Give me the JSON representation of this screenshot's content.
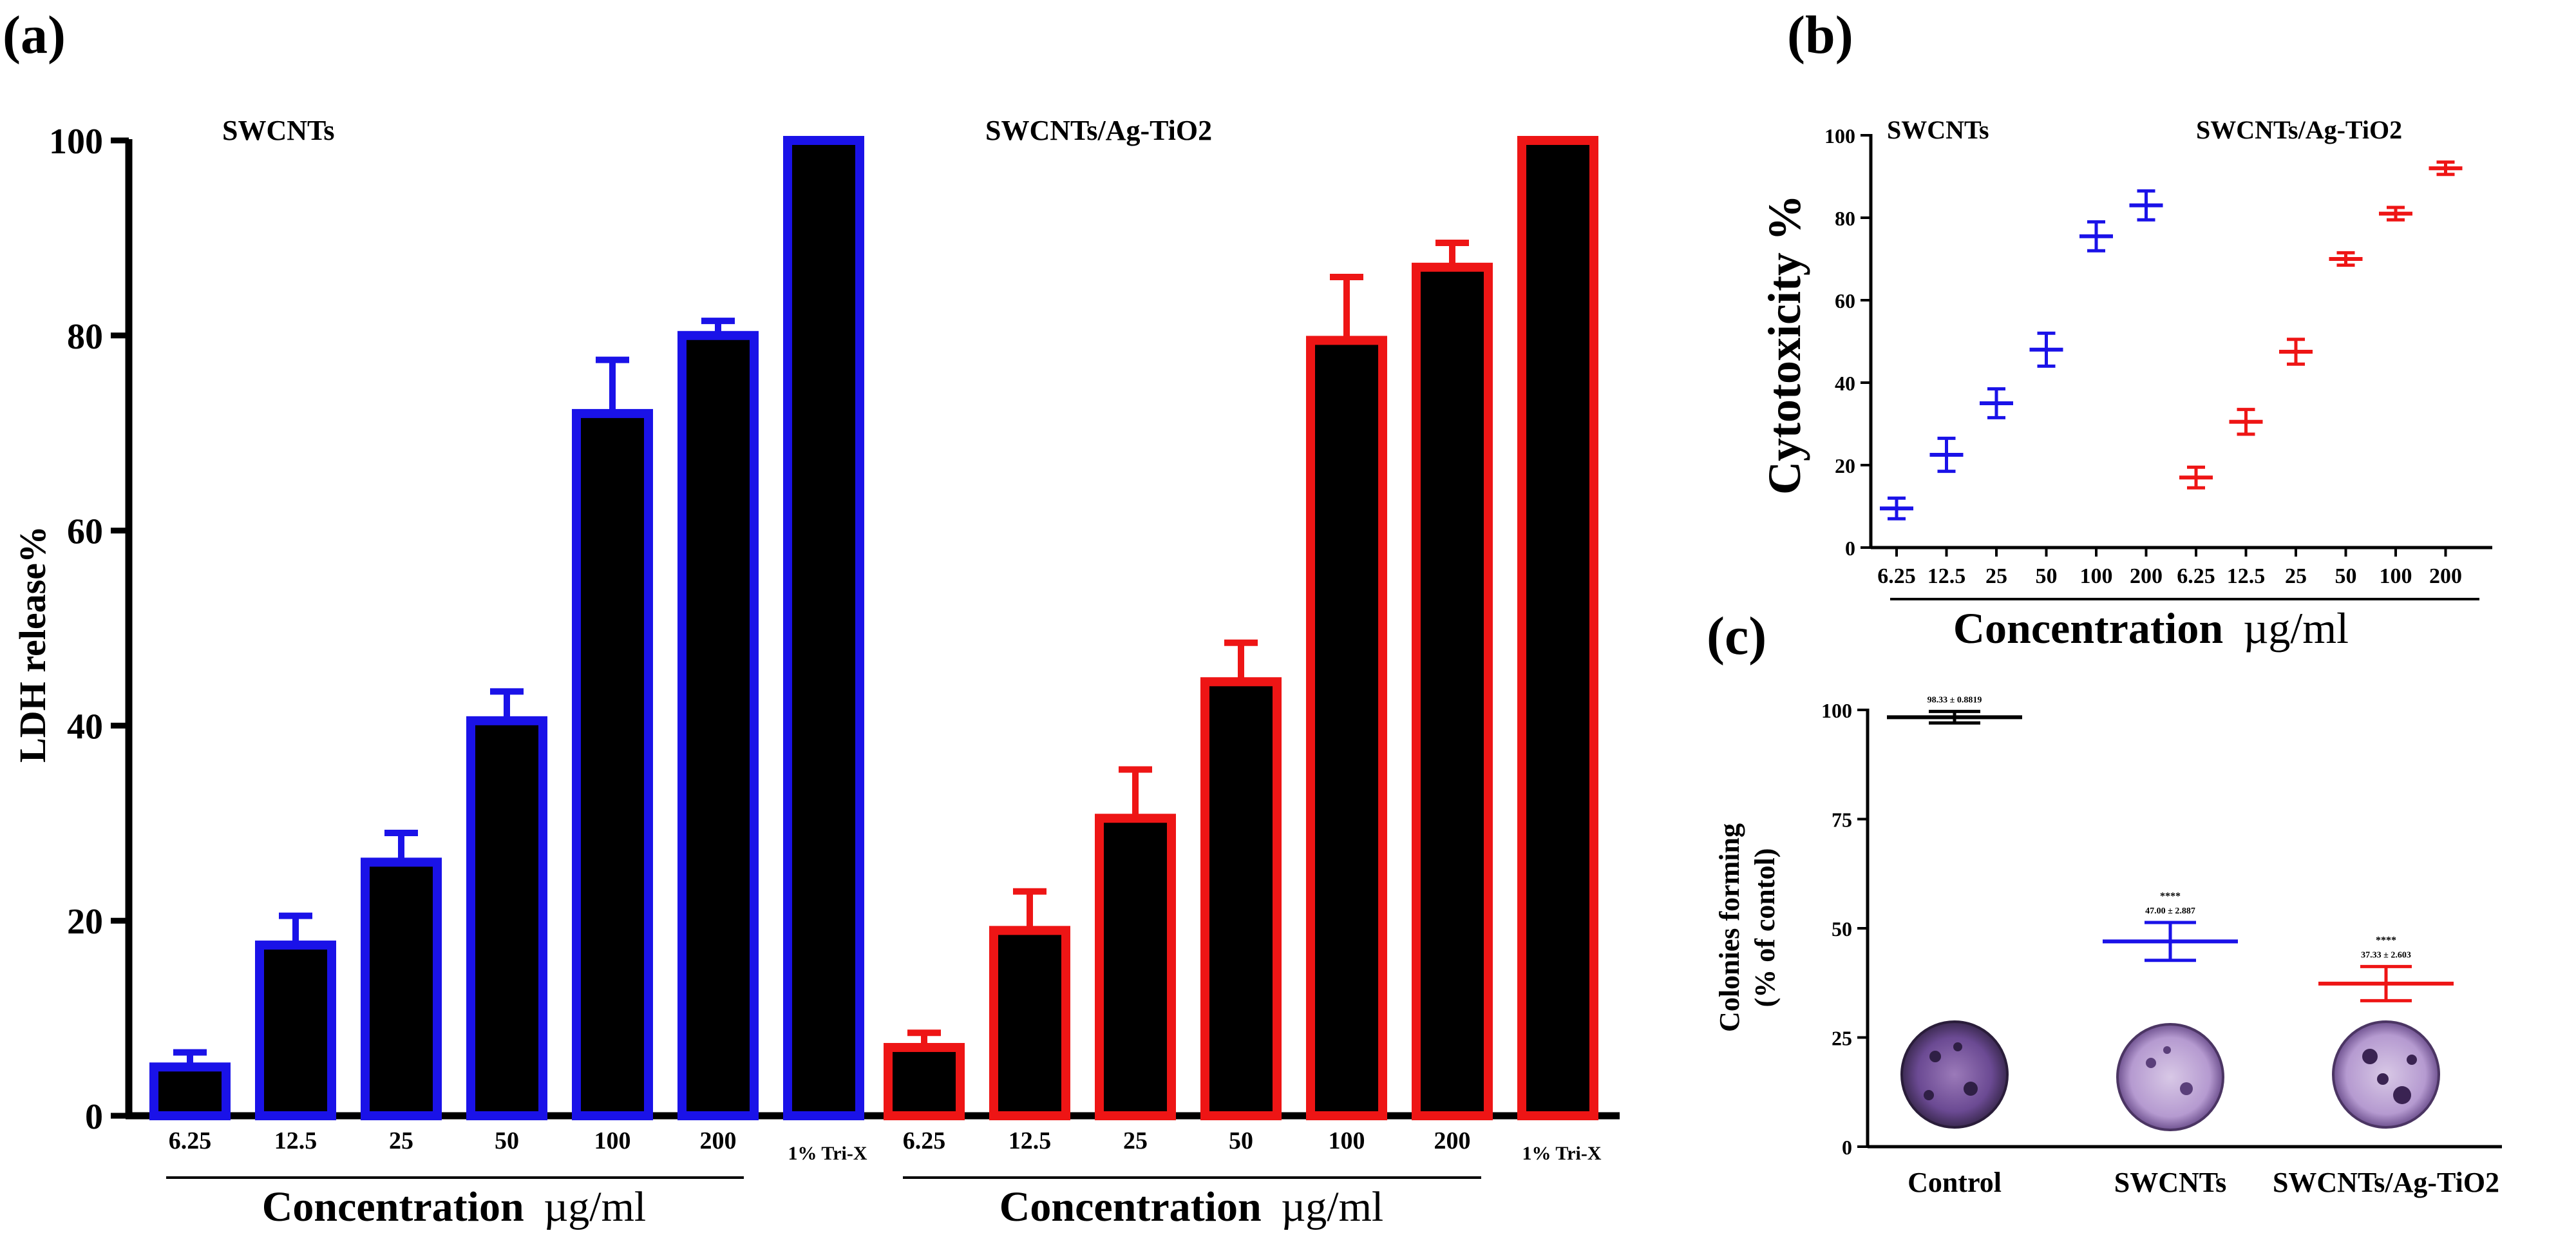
{
  "colors": {
    "swcnt": "#1a12e8",
    "agtio2": "#ee1515",
    "bar_fill": "#000000",
    "control": "#000000"
  },
  "panel_labels": {
    "a": "(a)",
    "b": "(b)",
    "c": "(c)"
  },
  "chart_data": [
    {
      "panel": "a",
      "type": "bar",
      "ylabel": "LDH release%",
      "xlabel_bold": "Concentration",
      "xlabel_unit": "µg/ml",
      "ylim": [
        0,
        100
      ],
      "yticks": [
        "0",
        "20",
        "40",
        "60",
        "80",
        "100"
      ],
      "groups": [
        {
          "name": "SWCNTs",
          "color_key": "swcnt",
          "categories": [
            "6.25",
            "12.5",
            "25",
            "50",
            "100",
            "200",
            "1% Tri-X"
          ],
          "values": [
            5,
            17.5,
            26,
            40.5,
            72,
            80,
            100
          ],
          "errors": [
            1.5,
            3,
            3,
            3,
            5.5,
            1.5,
            0
          ]
        },
        {
          "name": "SWCNTs/Ag-TiO2",
          "color_key": "agtio2",
          "categories": [
            "6.25",
            "12.5",
            "25",
            "50",
            "100",
            "200",
            "1% Tri-X"
          ],
          "values": [
            7,
            19,
            30.5,
            44.5,
            79.5,
            87,
            100
          ],
          "errors": [
            1.5,
            4,
            5,
            4,
            6.5,
            2.5,
            0
          ]
        }
      ]
    },
    {
      "panel": "b",
      "type": "scatter",
      "ylabel": "Cytotoxicity %",
      "xlabel_bold": "Concentration",
      "xlabel_unit": "µg/ml",
      "ylim": [
        0,
        100
      ],
      "yticks": [
        "0",
        "20",
        "40",
        "60",
        "80",
        "100"
      ],
      "series": [
        {
          "name": "SWCNTs",
          "color_key": "swcnt",
          "x": [
            "6.25",
            "12.5",
            "25",
            "50",
            "100",
            "200"
          ],
          "values": [
            9.5,
            22.5,
            35,
            48,
            75.5,
            83
          ],
          "errors": [
            2.5,
            4,
            3.5,
            4,
            3.5,
            3.5
          ]
        },
        {
          "name": "SWCNTs/Ag-TiO2",
          "color_key": "agtio2",
          "x": [
            "6.25",
            "12.5",
            "25",
            "50",
            "100",
            "200"
          ],
          "values": [
            17,
            30.5,
            47.5,
            70,
            81,
            92
          ],
          "errors": [
            2.5,
            3,
            3,
            1.5,
            1.5,
            1.5
          ]
        }
      ]
    },
    {
      "panel": "c",
      "type": "scatter",
      "ylabel_line1": "Colonies forming",
      "ylabel_line2": "(% of contol)",
      "ylim": [
        0,
        100
      ],
      "yticks": [
        "0",
        "25",
        "50",
        "75",
        "100"
      ],
      "categories": [
        "Control",
        "SWCNTs",
        "SWCNTs/Ag-TiO2"
      ],
      "values": [
        98.33,
        47.0,
        37.33
      ],
      "errors": [
        0.8819,
        2.887,
        2.603
      ],
      "series_colors": [
        "control",
        "swcnt",
        "agtio2"
      ],
      "annotations": [
        "98.33 ± 0.8819",
        "47.00 ± 2.887",
        "37.33 ± 2.603"
      ],
      "significance": [
        "",
        "****",
        "****"
      ]
    }
  ]
}
